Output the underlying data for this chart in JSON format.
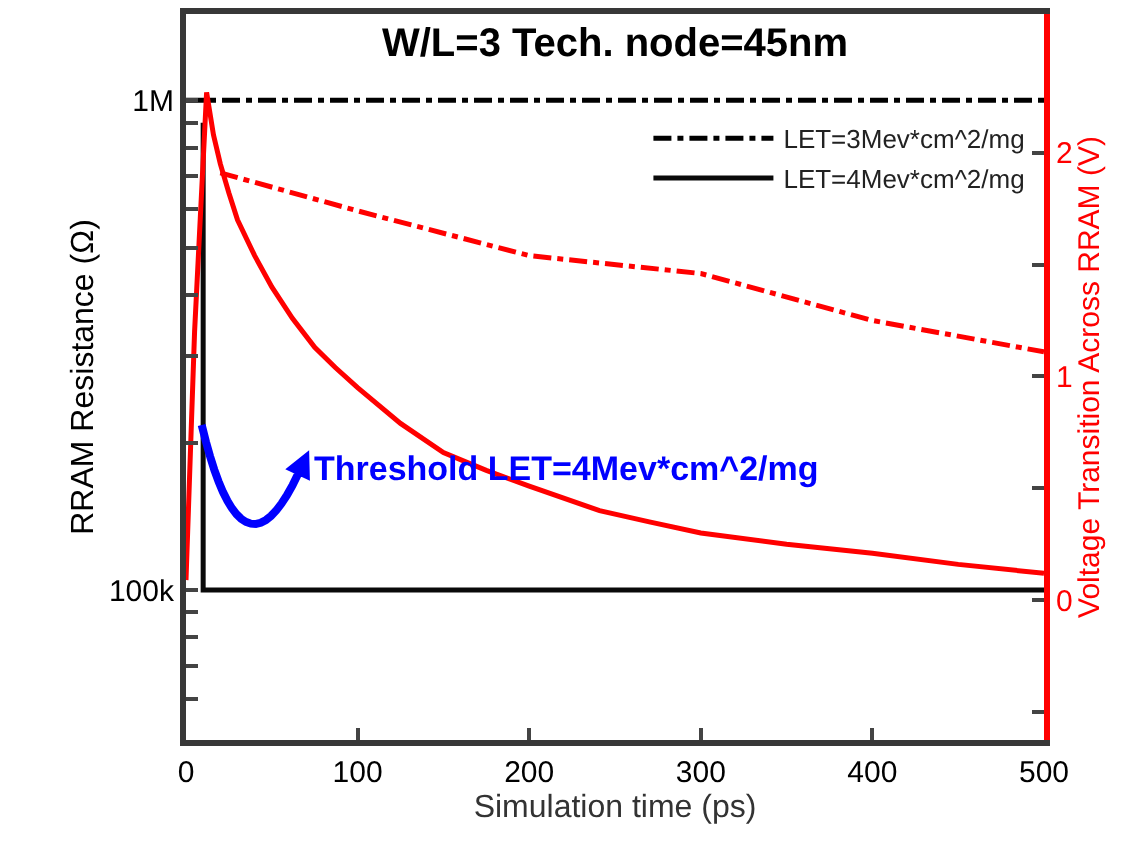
{
  "chart_data": {
    "type": "line",
    "title": "W/L=3 Tech. node=45nm",
    "xlabel": "Simulation time (ps)",
    "ylabel": "RRAM Resistance (Ω)",
    "y2label": "Voltage Transition Across RRAM (V)",
    "annotations": [
      "Threshold LET=4Mev*cm^2/mg"
    ],
    "log": true,
    "legend": "top right",
    "marker": "none",
    "xlim": [
      0,
      500
    ],
    "xticks": [
      0,
      100,
      200,
      300,
      400,
      500
    ],
    "ylim": [
      49400,
      1500000
    ],
    "yticks": [
      {
        "value": 60000,
        "label": null
      },
      {
        "value": 70000,
        "label": null
      },
      {
        "value": 80000,
        "label": null
      },
      {
        "value": 90000,
        "label": null
      },
      {
        "value": 100000,
        "label": "100k"
      },
      {
        "value": 200000,
        "label": null
      },
      {
        "value": 300000,
        "label": null
      },
      {
        "value": 400000,
        "label": null
      },
      {
        "value": 500000,
        "label": null
      },
      {
        "value": 600000,
        "label": null
      },
      {
        "value": 700000,
        "label": null
      },
      {
        "value": 800000,
        "label": null
      },
      {
        "value": 900000,
        "label": null
      },
      {
        "value": 1000000,
        "label": "1M"
      }
    ],
    "y2lim": [
      -0.625,
      2.62
    ],
    "y2ticks": [
      {
        "value": -0.5,
        "label": null
      },
      0,
      {
        "value": 0.5,
        "label": null
      },
      1,
      {
        "value": 1.5,
        "label": null
      },
      2
    ],
    "series": [
      {
        "name": "LET=3Mev*cm^2/mg",
        "color": "#000000",
        "line_style": "dashdot",
        "x": [
          0,
          500
        ],
        "values": [
          1000000,
          1000000
        ]
      },
      {
        "name": "LET=4Mev*cm^2/mg",
        "color": "#0a0a0a",
        "line_style": "solid",
        "x": [
          10,
          10,
          500
        ],
        "values": [
          900000,
          100000,
          100000
        ]
      },
      {
        "color": "#ff0000",
        "line_style": "dashdot",
        "axis": "y2",
        "x": [
          20,
          100,
          200,
          300,
          400,
          500
        ],
        "values": [
          1.91,
          1.74,
          1.54,
          1.46,
          1.25,
          1.11
        ]
      },
      {
        "color": "#ff0000",
        "line_style": "solid",
        "axis": "y2",
        "x": [
          0,
          5,
          12,
          16,
          20,
          25,
          30,
          40,
          50,
          62,
          75,
          87,
          100,
          125,
          150,
          175,
          200,
          241,
          270,
          300,
          350,
          400,
          450,
          500
        ],
        "values": [
          0.09,
          1.2,
          2.27,
          2.08,
          1.95,
          1.82,
          1.7,
          1.54,
          1.4,
          1.26,
          1.13,
          1.04,
          0.95,
          0.79,
          0.66,
          0.58,
          0.51,
          0.4,
          0.35,
          0.3,
          0.25,
          0.21,
          0.16,
          0.12
        ]
      }
    ]
  }
}
